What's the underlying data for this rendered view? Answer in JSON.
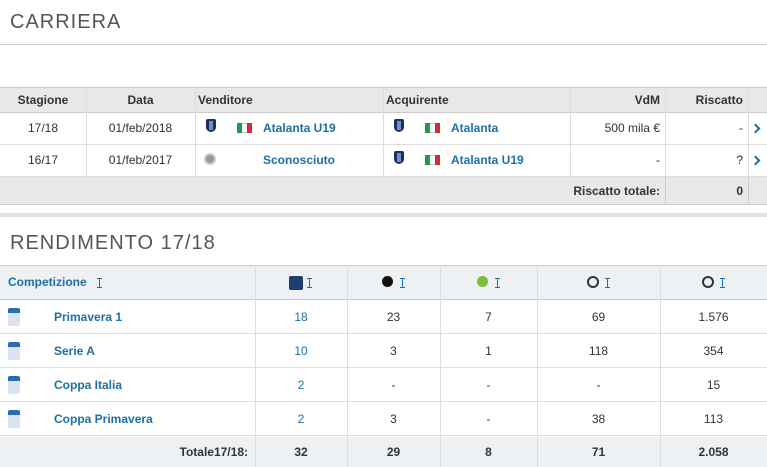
{
  "carriera": {
    "title": "CARRIERA",
    "headers": [
      "Stagione",
      "Data",
      "Venditore",
      "Acquirente",
      "VdM",
      "Riscatto"
    ],
    "rows": [
      [
        "17/18",
        "01/feb/2018",
        "Atalanta U19",
        "Atalanta",
        "500 mila €",
        "-"
      ],
      [
        "16/17",
        "01/feb/2017",
        "Sconosciuto",
        "Atalanta U19",
        "-",
        "?"
      ]
    ],
    "total_label": "Riscatto totale:",
    "total_value": "0"
  },
  "rendimento": {
    "title": "RENDIMENTO 17/18",
    "header": "Competizione",
    "rows": [
      [
        "Primavera 1",
        "18",
        "23",
        "7",
        "69",
        "1.576"
      ],
      [
        "Serie A",
        "10",
        "3",
        "1",
        "118",
        "354"
      ],
      [
        "Coppa Italia",
        "2",
        "-",
        "-",
        "-",
        "15"
      ],
      [
        "Coppa Primavera",
        "2",
        "3",
        "-",
        "38",
        "113"
      ]
    ],
    "total_label": "Totale17/18:",
    "total": [
      "32",
      "29",
      "8",
      "71",
      "2.058"
    ]
  }
}
